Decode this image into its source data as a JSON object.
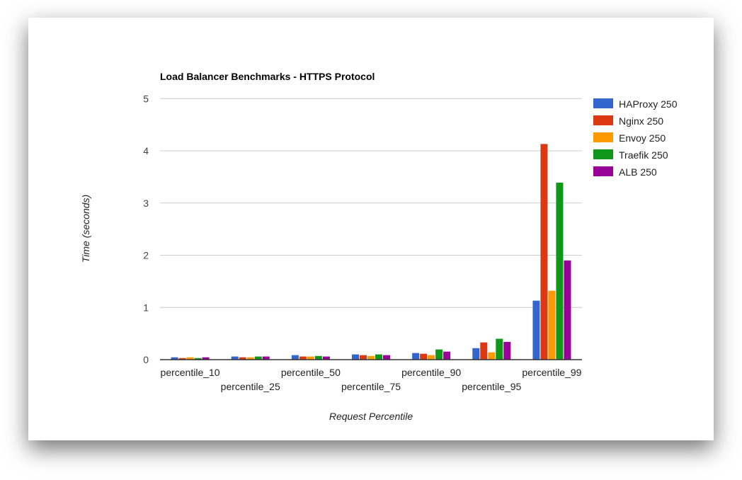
{
  "chart_data": {
    "type": "bar",
    "title": "Load Balancer Benchmarks - HTTPS Protocol",
    "xlabel": "Request Percentile",
    "ylabel": "Time (seconds)",
    "ylim": [
      0,
      5
    ],
    "yticks": [
      0,
      1,
      2,
      3,
      4,
      5
    ],
    "grid": true,
    "legend_position": "right",
    "categories": [
      "percentile_10",
      "percentile_25",
      "percentile_50",
      "percentile_75",
      "percentile_90",
      "percentile_95",
      "percentile_99"
    ],
    "series": [
      {
        "name": "HAProxy 250",
        "color": "#3366cc",
        "values": [
          0.045,
          0.06,
          0.086,
          0.1,
          0.127,
          0.22,
          1.13
        ]
      },
      {
        "name": "Nginx 250",
        "color": "#dc3912",
        "values": [
          0.03,
          0.045,
          0.06,
          0.086,
          0.113,
          0.33,
          4.13
        ]
      },
      {
        "name": "Envoy 250",
        "color": "#ff9900",
        "values": [
          0.045,
          0.045,
          0.06,
          0.07,
          0.086,
          0.14,
          1.32
        ]
      },
      {
        "name": "Traefik 250",
        "color": "#109618",
        "values": [
          0.03,
          0.06,
          0.07,
          0.1,
          0.195,
          0.4,
          3.39
        ]
      },
      {
        "name": "ALB 250",
        "color": "#990099",
        "values": [
          0.045,
          0.06,
          0.06,
          0.086,
          0.154,
          0.34,
          1.9
        ]
      }
    ]
  }
}
